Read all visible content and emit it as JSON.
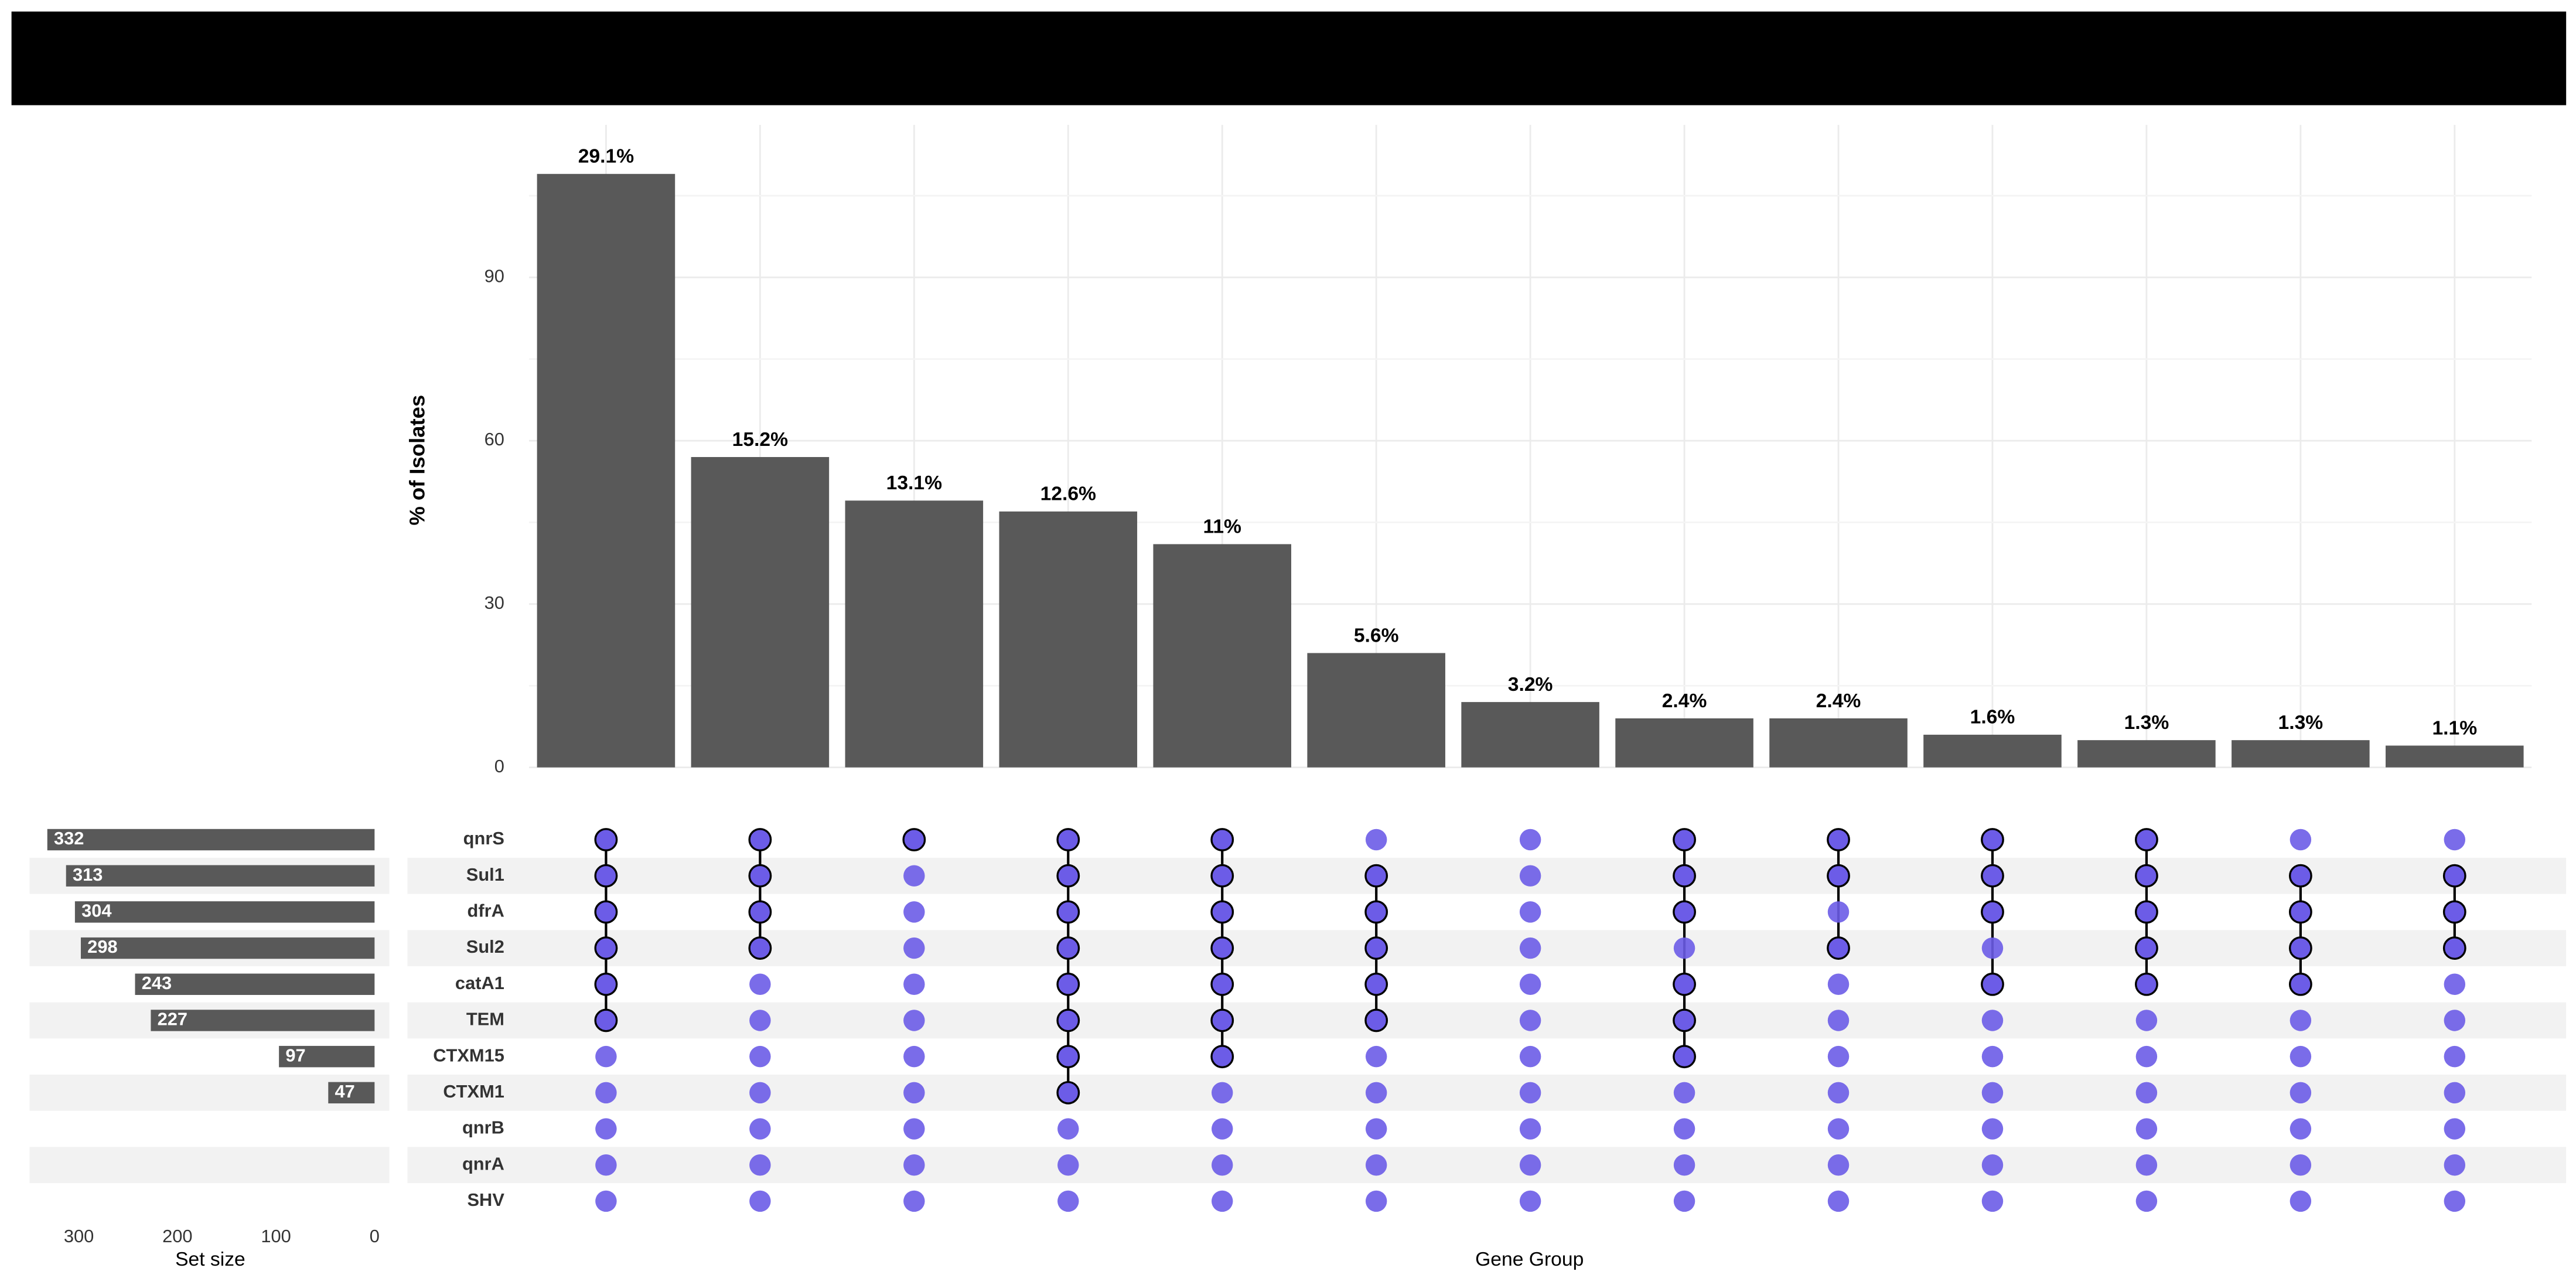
{
  "chart_data": {
    "type": "upset",
    "y_label": "% of Isolates",
    "x_label": "Gene Group",
    "set_size_label": "Set size",
    "sets": [
      "qnrS",
      "Sul1",
      "dfrA",
      "Sul2",
      "catA1",
      "TEM",
      "CTXM15",
      "CTXM1",
      "qnrB",
      "qnrA",
      "SHV"
    ],
    "set_sizes": [
      332,
      313,
      304,
      298,
      243,
      227,
      97,
      47,
      null,
      null,
      null
    ],
    "set_size_xlim": [
      0,
      350
    ],
    "set_size_xticks": [
      0,
      100,
      200,
      300
    ],
    "values": [
      109,
      57,
      49,
      47,
      41,
      21,
      12,
      9,
      9,
      6,
      5,
      5,
      4
    ],
    "bar_labels": [
      "29.1%",
      "15.2%",
      "13.1%",
      "12.6%",
      "11%",
      "5.6%",
      "3.2%",
      "2.4%",
      "2.4%",
      "1.6%",
      "1.3%",
      "1.3%",
      "1.1%"
    ],
    "members": [
      [
        0,
        1,
        2,
        3,
        4,
        5
      ],
      [
        0,
        1,
        2,
        3
      ],
      [
        0
      ],
      [
        0,
        1,
        2,
        3,
        4,
        5,
        6,
        7
      ],
      [
        0,
        1,
        2,
        3,
        4,
        5,
        6
      ],
      [
        1,
        2,
        3,
        4,
        5
      ],
      [],
      [
        0,
        1,
        2,
        4,
        5,
        6
      ],
      [
        0,
        1,
        3
      ],
      [
        0,
        1,
        2,
        4
      ],
      [
        0,
        1,
        2,
        3,
        4
      ],
      [
        1,
        2,
        3,
        4
      ],
      [
        1,
        2,
        3
      ]
    ],
    "ylim": [
      0,
      118
    ],
    "yticks": [
      0,
      30,
      60,
      90
    ],
    "grid": true,
    "bar_color": "#595959",
    "dot_color": "#6c5ce7"
  }
}
